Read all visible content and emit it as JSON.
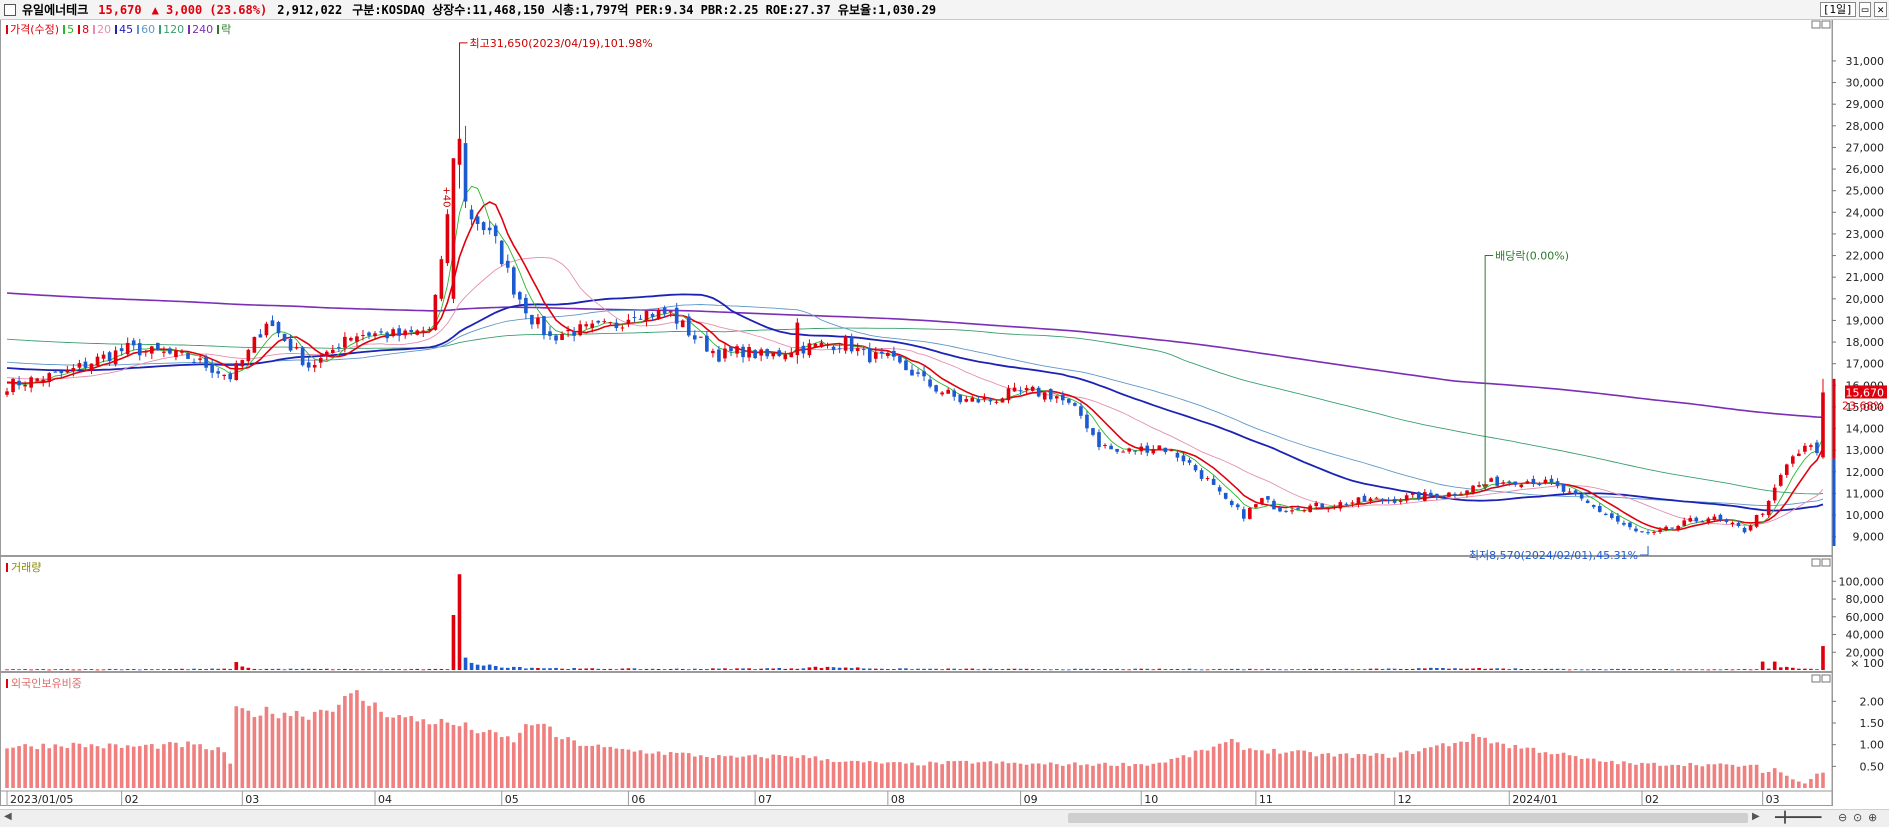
{
  "header": {
    "stock_name": "유일에너테크",
    "price": "15,670",
    "change": "▲ 3,000 (23.68%)",
    "volume": "2,912,022",
    "info": "구분:KOSDAQ 상장수:11,468,150 시총:1,797억 PER:9.34 PBR:2.25 ROE:27.37 유보율:1,030.29",
    "period_button": "[1일]"
  },
  "legend": [
    {
      "label": "가격(수정)",
      "color": "#e0000d"
    },
    {
      "label": "5",
      "color": "#2db52d"
    },
    {
      "label": "8",
      "color": "#e0000d"
    },
    {
      "label": "20",
      "color": "#e58fb0"
    },
    {
      "label": "45",
      "color": "#1c23b4"
    },
    {
      "label": "60",
      "color": "#5f98c8"
    },
    {
      "label": "120",
      "color": "#3a9f6e"
    },
    {
      "label": "240",
      "color": "#7b2fb5"
    },
    {
      "label": "락",
      "color": "#2a7a2a"
    }
  ],
  "panels": {
    "volume_label": "거래량",
    "foreign_label": "외국인보유비중"
  },
  "chart_data": {
    "type": "candlestick",
    "price_axis": {
      "ylim": [
        8200,
        32800
      ],
      "ticks": [
        9000,
        10000,
        11000,
        12000,
        13000,
        14000,
        15000,
        16000,
        17000,
        18000,
        19000,
        20000,
        21000,
        22000,
        23000,
        24000,
        25000,
        26000,
        27000,
        28000,
        29000,
        30000,
        31000
      ],
      "tick_labels": [
        "9,000",
        "10,000",
        "11,000",
        "12,000",
        "13,000",
        "14,000",
        "15,000",
        "16,000",
        "17,000",
        "18,000",
        "19,000",
        "20,000",
        "21,000",
        "22,000",
        "23,000",
        "24,000",
        "25,000",
        "26,000",
        "27,000",
        "28,000",
        "29,000",
        "30,000",
        "31,000"
      ]
    },
    "current_price": {
      "value": 15670,
      "label": "15,670",
      "pct": "23.68%"
    },
    "volume_axis": {
      "ylim": [
        0,
        115000
      ],
      "ticks": [
        20000,
        40000,
        60000,
        80000,
        100000
      ],
      "tick_labels": [
        "20,000",
        "40,000",
        "60,000",
        "80,000",
        "100,000"
      ],
      "unit": "× 100"
    },
    "foreign_axis": {
      "ylim": [
        0,
        2.4
      ],
      "ticks": [
        0.5,
        1.0,
        1.5,
        2.0
      ],
      "tick_labels": [
        "0.50",
        "1.00",
        "1.50",
        "2.00"
      ]
    },
    "x_labels": [
      {
        "label": "2023/01/05",
        "index": 0
      },
      {
        "label": "02",
        "index": 19
      },
      {
        "label": "03",
        "index": 39
      },
      {
        "label": "04",
        "index": 61
      },
      {
        "label": "05",
        "index": 82
      },
      {
        "label": "06",
        "index": 103
      },
      {
        "label": "07",
        "index": 124
      },
      {
        "label": "08",
        "index": 146
      },
      {
        "label": "09",
        "index": 168
      },
      {
        "label": "10",
        "index": 188
      },
      {
        "label": "11",
        "index": 207
      },
      {
        "label": "12",
        "index": 230
      },
      {
        "label": "2024/01",
        "index": 249
      },
      {
        "label": "02",
        "index": 271
      },
      {
        "label": "03",
        "index": 291
      }
    ],
    "bar_count": 302,
    "price_anchors": [
      [
        0,
        16000
      ],
      [
        10,
        16600
      ],
      [
        15,
        17200
      ],
      [
        20,
        17700
      ],
      [
        30,
        17300
      ],
      [
        37,
        16400
      ],
      [
        40,
        17500
      ],
      [
        43,
        19000
      ],
      [
        47,
        17800
      ],
      [
        50,
        16900
      ],
      [
        53,
        17300
      ],
      [
        56,
        18300
      ],
      [
        60,
        18400
      ],
      [
        66,
        18300
      ],
      [
        70,
        18600
      ],
      [
        72,
        21500
      ],
      [
        74,
        26500
      ],
      [
        76,
        24000
      ],
      [
        78,
        23600
      ],
      [
        81,
        22600
      ],
      [
        84,
        20500
      ],
      [
        87,
        19100
      ],
      [
        90,
        18200
      ],
      [
        93,
        18500
      ],
      [
        97,
        18600
      ],
      [
        101,
        18800
      ],
      [
        104,
        19400
      ],
      [
        110,
        19300
      ],
      [
        114,
        18200
      ],
      [
        118,
        17400
      ],
      [
        122,
        17600
      ],
      [
        126,
        17300
      ],
      [
        130,
        17700
      ],
      [
        134,
        17800
      ],
      [
        139,
        18000
      ],
      [
        142,
        17400
      ],
      [
        146,
        17200
      ],
      [
        150,
        16600
      ],
      [
        153,
        16000
      ],
      [
        158,
        15300
      ],
      [
        163,
        15300
      ],
      [
        166,
        15600
      ],
      [
        170,
        15700
      ],
      [
        174,
        15500
      ],
      [
        178,
        14600
      ],
      [
        181,
        13300
      ],
      [
        184,
        12900
      ],
      [
        187,
        13000
      ],
      [
        191,
        13200
      ],
      [
        195,
        12600
      ],
      [
        199,
        11600
      ],
      [
        202,
        10600
      ],
      [
        205,
        10000
      ],
      [
        208,
        10700
      ],
      [
        211,
        10300
      ],
      [
        214,
        10400
      ],
      [
        217,
        10400
      ],
      [
        220,
        10500
      ],
      [
        223,
        10600
      ],
      [
        226,
        10700
      ],
      [
        229,
        10700
      ],
      [
        232,
        10800
      ],
      [
        235,
        10900
      ],
      [
        239,
        11000
      ],
      [
        243,
        11300
      ],
      [
        246,
        11500
      ],
      [
        250,
        11600
      ],
      [
        253,
        11600
      ],
      [
        256,
        11400
      ],
      [
        260,
        10800
      ],
      [
        264,
        10200
      ],
      [
        267,
        9700
      ],
      [
        270,
        9200
      ],
      [
        273,
        9100
      ],
      [
        276,
        9400
      ],
      [
        279,
        9700
      ],
      [
        282,
        9900
      ],
      [
        285,
        9600
      ],
      [
        288,
        9300
      ],
      [
        290,
        9900
      ],
      [
        292,
        10500
      ],
      [
        294,
        11800
      ],
      [
        296,
        12700
      ],
      [
        299,
        13200
      ],
      [
        300,
        12700
      ],
      [
        301,
        12700
      ]
    ],
    "special_candles": [
      {
        "index": 74,
        "open": 20000,
        "close": 26500,
        "high": 26500,
        "low": 19800
      },
      {
        "index": 75,
        "open": 26200,
        "close": 27400,
        "high": 31650,
        "low": 25100
      },
      {
        "index": 76,
        "open": 27200,
        "close": 24500,
        "high": 28000,
        "low": 24200
      },
      {
        "index": 131,
        "open": 17400,
        "close": 18900,
        "high": 19100,
        "low": 17000
      },
      {
        "index": 301,
        "open": 12670,
        "close": 15670,
        "high": 16300,
        "low": 12600
      }
    ],
    "ma_lines": [
      {
        "name": "5",
        "period": 5,
        "color": "#2db52d",
        "width": 0.9
      },
      {
        "name": "8",
        "period": 8,
        "color": "#e0000d",
        "width": 1.6
      },
      {
        "name": "20",
        "period": 20,
        "color": "#e58fb0",
        "width": 0.9
      },
      {
        "name": "45",
        "period": 45,
        "color": "#1c23b4",
        "width": 1.8
      },
      {
        "name": "60",
        "period": 60,
        "color": "#5f98c8",
        "width": 0.9
      },
      {
        "name": "120",
        "period": 120,
        "color": "#3a9f6e",
        "width": 0.9
      },
      {
        "name": "240",
        "period": 240,
        "color": "#7b2fb5",
        "width": 1.6
      }
    ],
    "annotations": {
      "high": {
        "index": 75,
        "value": 31650,
        "label": "최고31,650(2023/04/19),101.98%"
      },
      "low": {
        "index": 272,
        "value": 8570,
        "label": "최저8,570(2024/02/01),45.31%"
      },
      "dividend": {
        "index": 245,
        "label": "배당락(0.00%)"
      },
      "event_tag": {
        "index": 73,
        "label": "+40"
      }
    },
    "volume_anchors": [
      [
        0,
        700
      ],
      [
        37,
        1200
      ],
      [
        38,
        9000
      ],
      [
        39,
        4000
      ],
      [
        40,
        2500
      ],
      [
        41,
        1200
      ],
      [
        60,
        900
      ],
      [
        73,
        900
      ],
      [
        74,
        62000
      ],
      [
        75,
        108000
      ],
      [
        76,
        14000
      ],
      [
        77,
        8000
      ],
      [
        78,
        6000
      ],
      [
        79,
        5000
      ],
      [
        81,
        4500
      ],
      [
        84,
        3500
      ],
      [
        87,
        2500
      ],
      [
        95,
        1500
      ],
      [
        110,
        1200
      ],
      [
        130,
        1800
      ],
      [
        136,
        3500
      ],
      [
        145,
        1400
      ],
      [
        170,
        1000
      ],
      [
        220,
        1100
      ],
      [
        240,
        2000
      ],
      [
        260,
        900
      ],
      [
        290,
        900
      ],
      [
        291,
        9500
      ],
      [
        292,
        1500
      ],
      [
        293,
        9500
      ],
      [
        294,
        3000
      ],
      [
        295,
        3500
      ],
      [
        296,
        2500
      ],
      [
        298,
        1500
      ],
      [
        300,
        900
      ],
      [
        301,
        27000
      ]
    ],
    "foreign_anchors": [
      [
        0,
        0.95
      ],
      [
        10,
        1.0
      ],
      [
        20,
        0.95
      ],
      [
        30,
        1.0
      ],
      [
        36,
        0.85
      ],
      [
        37,
        0.55
      ],
      [
        38,
        1.75
      ],
      [
        45,
        1.75
      ],
      [
        50,
        1.7
      ],
      [
        55,
        1.95
      ],
      [
        58,
        2.15
      ],
      [
        60,
        1.95
      ],
      [
        62,
        1.8
      ],
      [
        66,
        1.6
      ],
      [
        70,
        1.55
      ],
      [
        75,
        1.45
      ],
      [
        80,
        1.25
      ],
      [
        84,
        1.1
      ],
      [
        86,
        1.4
      ],
      [
        88,
        1.55
      ],
      [
        91,
        1.2
      ],
      [
        94,
        1.05
      ],
      [
        100,
        0.9
      ],
      [
        110,
        0.8
      ],
      [
        120,
        0.7
      ],
      [
        130,
        0.75
      ],
      [
        140,
        0.6
      ],
      [
        150,
        0.55
      ],
      [
        160,
        0.6
      ],
      [
        170,
        0.55
      ],
      [
        180,
        0.55
      ],
      [
        190,
        0.55
      ],
      [
        196,
        0.75
      ],
      [
        200,
        0.95
      ],
      [
        203,
        1.05
      ],
      [
        206,
        0.9
      ],
      [
        210,
        0.85
      ],
      [
        220,
        0.75
      ],
      [
        230,
        0.75
      ],
      [
        240,
        1.05
      ],
      [
        244,
        1.2
      ],
      [
        248,
        1.0
      ],
      [
        255,
        0.85
      ],
      [
        262,
        0.65
      ],
      [
        270,
        0.55
      ],
      [
        280,
        0.55
      ],
      [
        290,
        0.5
      ],
      [
        291,
        0.35
      ],
      [
        293,
        0.45
      ],
      [
        296,
        0.2
      ],
      [
        298,
        0.1
      ],
      [
        300,
        0.35
      ],
      [
        301,
        0.38
      ]
    ]
  }
}
